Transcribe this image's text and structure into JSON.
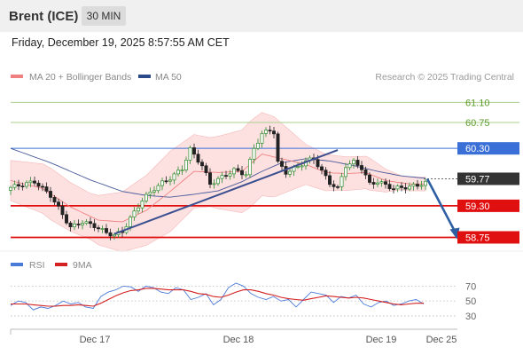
{
  "header": {
    "instrument": "Brent (ICE)",
    "timeframe": "30 MIN",
    "datetime": "Friday, December 19, 2025 8:57:55 AM CET"
  },
  "legend": {
    "ma20_label": "MA 20 + Bollinger Bands",
    "ma50_label": "MA 50",
    "credit": "Research © 2025 Trading Central",
    "rsi_label": "RSI",
    "rsi_ma_label": "9MA"
  },
  "colors": {
    "ma20": "#f08080",
    "ma50": "#2a4a8a",
    "bands_fill": "#fdd9d9",
    "resistance_green": "#a9d18e",
    "pivot_blue": "#3a6fd8",
    "support_red": "#e01010",
    "last_price": "#333333",
    "up_candle": "#2e8b2e",
    "down_candle": "#222222",
    "trend_line": "#3b4f8f",
    "arrow": "#2e5fa3",
    "rsi": "#4a7ad8",
    "rsi_ma": "#d42020"
  },
  "chart_data": [
    {
      "type": "candlestick",
      "title": "Brent (ICE) 30 MIN",
      "x_labels": [
        "Dec 17",
        "Dec 18",
        "Dec 19",
        "Dec 25"
      ],
      "levels": [
        {
          "value": 61.1,
          "label": "61.10",
          "kind": "resistance",
          "color": "#a9d18e"
        },
        {
          "value": 60.75,
          "label": "60.75",
          "kind": "resistance",
          "color": "#a9d18e"
        },
        {
          "value": 60.3,
          "label": "60.30",
          "kind": "pivot",
          "color": "#3a6fd8"
        },
        {
          "value": 59.77,
          "label": "59.77",
          "kind": "last",
          "color": "#333333"
        },
        {
          "value": 59.3,
          "label": "59.30",
          "kind": "support",
          "color": "#e01010"
        },
        {
          "value": 58.75,
          "label": "58.75",
          "kind": "support",
          "color": "#e01010"
        }
      ],
      "ylim": [
        58.68,
        61.4
      ],
      "close_path": [
        [
          0,
          59.62
        ],
        [
          6,
          59.72
        ],
        [
          10,
          59.48
        ],
        [
          13,
          59.15
        ],
        [
          15,
          58.92
        ],
        [
          18,
          59.02
        ],
        [
          21,
          58.95
        ],
        [
          24,
          58.83
        ],
        [
          26,
          58.79
        ],
        [
          28,
          58.85
        ],
        [
          30,
          59.08
        ],
        [
          33,
          59.4
        ],
        [
          36,
          59.6
        ],
        [
          38,
          59.7
        ],
        [
          40,
          59.78
        ],
        [
          43,
          59.95
        ],
        [
          45,
          60.28
        ],
        [
          48,
          60.0
        ],
        [
          50,
          59.68
        ],
        [
          53,
          59.8
        ],
        [
          56,
          59.92
        ],
        [
          59,
          59.85
        ],
        [
          61,
          60.3
        ],
        [
          63,
          60.55
        ],
        [
          65,
          60.62
        ],
        [
          66,
          60.58
        ],
        [
          67,
          60.05
        ],
        [
          69,
          59.88
        ],
        [
          72,
          59.98
        ],
        [
          74,
          60.08
        ],
        [
          76,
          60.12
        ],
        [
          78,
          59.9
        ],
        [
          80,
          59.7
        ],
        [
          82,
          59.6
        ],
        [
          84,
          60.0
        ],
        [
          86,
          60.06
        ],
        [
          88,
          59.96
        ],
        [
          90,
          59.68
        ],
        [
          92,
          59.72
        ],
        [
          94,
          59.66
        ],
        [
          96,
          59.6
        ],
        [
          98,
          59.62
        ],
        [
          100,
          59.63
        ],
        [
          102,
          59.66
        ],
        [
          104,
          59.7
        ]
      ],
      "ma20_path": [
        [
          0,
          59.74
        ],
        [
          8,
          59.6
        ],
        [
          15,
          59.28
        ],
        [
          22,
          59.05
        ],
        [
          28,
          59.02
        ],
        [
          34,
          59.22
        ],
        [
          40,
          59.55
        ],
        [
          46,
          59.9
        ],
        [
          52,
          59.88
        ],
        [
          58,
          59.9
        ],
        [
          63,
          60.2
        ],
        [
          68,
          60.12
        ],
        [
          74,
          60.02
        ],
        [
          79,
          59.88
        ],
        [
          84,
          59.86
        ],
        [
          89,
          59.88
        ],
        [
          94,
          59.74
        ],
        [
          100,
          59.68
        ],
        [
          104,
          59.68
        ]
      ],
      "ma50_path": [
        [
          0,
          60.3
        ],
        [
          10,
          60.05
        ],
        [
          20,
          59.75
        ],
        [
          28,
          59.55
        ],
        [
          34,
          59.48
        ],
        [
          40,
          59.45
        ],
        [
          46,
          59.5
        ],
        [
          52,
          59.56
        ],
        [
          58,
          59.72
        ],
        [
          63,
          59.9
        ],
        [
          68,
          60.05
        ],
        [
          74,
          60.12
        ],
        [
          80,
          60.08
        ],
        [
          86,
          60.0
        ],
        [
          92,
          59.9
        ],
        [
          98,
          59.82
        ],
        [
          104,
          59.78
        ]
      ],
      "bollinger_half_width": [
        [
          0,
          0.35
        ],
        [
          10,
          0.45
        ],
        [
          20,
          0.4
        ],
        [
          30,
          0.55
        ],
        [
          40,
          0.7
        ],
        [
          50,
          0.6
        ],
        [
          60,
          0.75
        ],
        [
          66,
          0.7
        ],
        [
          74,
          0.35
        ],
        [
          82,
          0.3
        ],
        [
          90,
          0.28
        ],
        [
          98,
          0.12
        ],
        [
          104,
          0.12
        ]
      ],
      "trend_line": [
        [
          26,
          58.81
        ],
        [
          82,
          60.27
        ]
      ],
      "forecast_arrow": [
        [
          104,
          59.77
        ],
        [
          111,
          58.75
        ]
      ]
    },
    {
      "type": "line",
      "title": "RSI",
      "series": [
        {
          "name": "RSI",
          "values": [
            44,
            50,
            48,
            38,
            42,
            40,
            44,
            50,
            46,
            48,
            42,
            40,
            56,
            62,
            65,
            70,
            69,
            63,
            70,
            68,
            62,
            60,
            68,
            65,
            52,
            55,
            60,
            45,
            52,
            68,
            74,
            70,
            60,
            55,
            52,
            56,
            50,
            52,
            42,
            52,
            62,
            60,
            58,
            48,
            56,
            54,
            58,
            46,
            42,
            48,
            50,
            44,
            46,
            50,
            52,
            46
          ]
        },
        {
          "name": "9MA",
          "values": [
            46,
            46,
            46,
            45,
            44,
            43,
            43,
            44,
            44,
            45,
            44,
            43,
            47,
            52,
            57,
            61,
            64,
            65,
            67,
            67,
            66,
            65,
            65,
            65,
            63,
            60,
            59,
            56,
            55,
            58,
            62,
            65,
            65,
            63,
            60,
            58,
            55,
            53,
            52,
            51,
            53,
            55,
            57,
            56,
            55,
            54,
            55,
            54,
            52,
            50,
            48,
            46,
            45,
            46,
            47,
            47
          ]
        }
      ],
      "yticks": [
        30,
        50,
        70
      ],
      "ylim": [
        18,
        80
      ]
    }
  ]
}
